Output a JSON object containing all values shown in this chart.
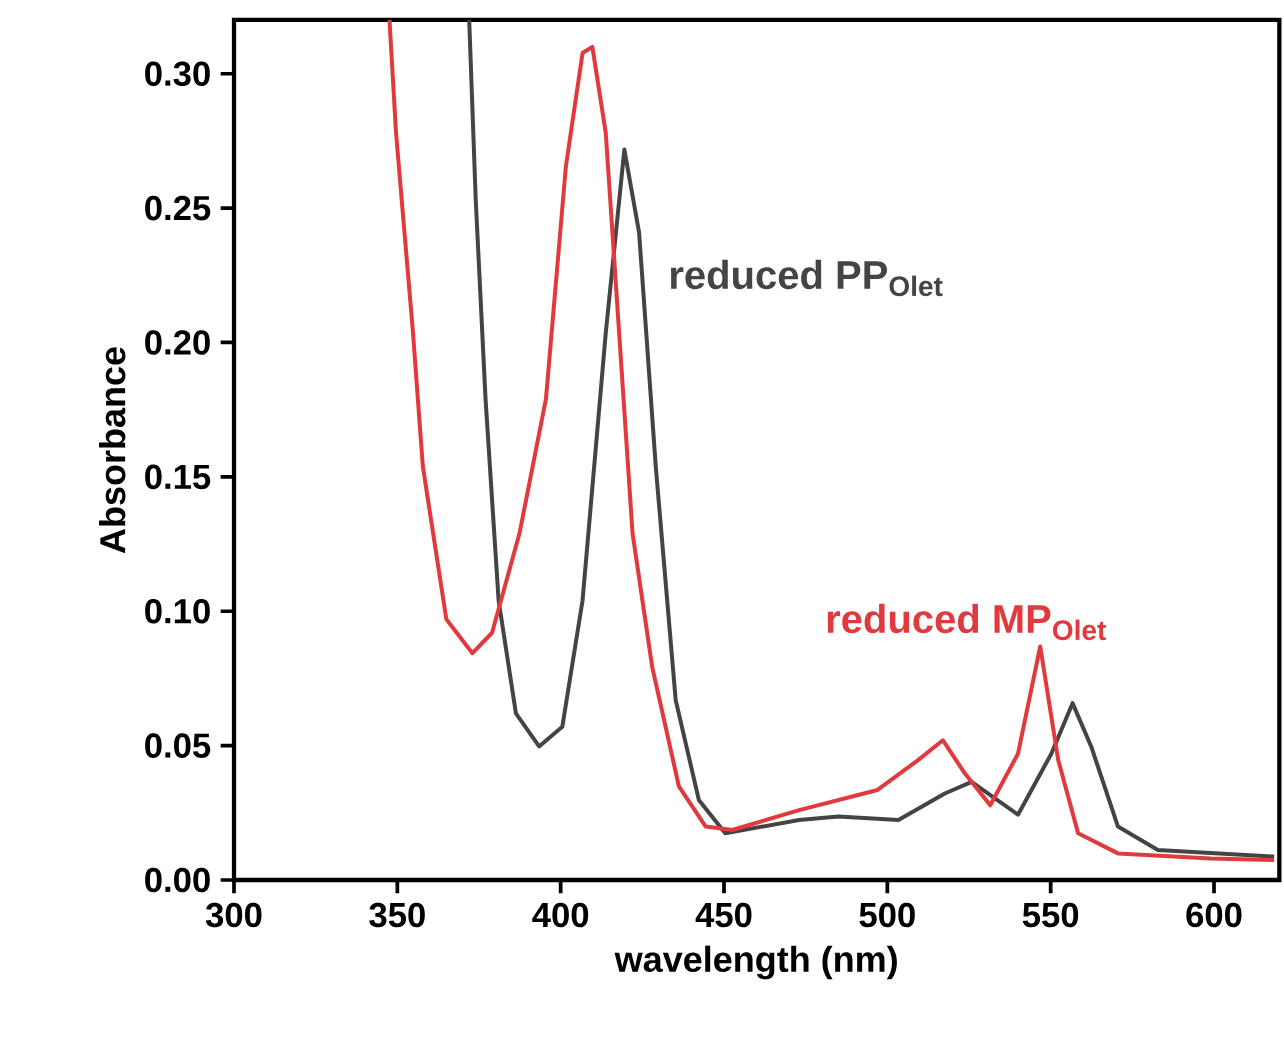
{
  "chart_data": {
    "type": "line",
    "xlabel": "wavelength (nm)",
    "ylabel": "Absorbance",
    "xlim": [
      300,
      620
    ],
    "ylim": [
      0,
      0.32
    ],
    "xticks": [
      300,
      350,
      400,
      450,
      500,
      550,
      600
    ],
    "yticks": [
      {
        "value": 0,
        "label": "0.00"
      },
      {
        "value": 0.05,
        "label": "0.05"
      },
      {
        "value": 0.1,
        "label": "0.10"
      },
      {
        "value": 0.15,
        "label": "0.15"
      },
      {
        "value": 0.2,
        "label": "0.20"
      },
      {
        "value": 0.25,
        "label": "0.25"
      },
      {
        "value": 0.3,
        "label": "0.30"
      }
    ],
    "grid": false,
    "marker": "none",
    "line_style": "solid",
    "series": [
      {
        "name": "reduced PP$_{Olet}$",
        "color": "#444444",
        "x": [
          372,
          374,
          377,
          381,
          386.3,
          393.4,
          400.5,
          406.7,
          413.8,
          419.5,
          424,
          429.1,
          435.2,
          442.3,
          450.4,
          473,
          485,
          503.4,
          517.6,
          525.8,
          540,
          550.2,
          556.7,
          562.4,
          570.6,
          582.8,
          618.4
        ],
        "values": [
          0.32,
          0.253,
          0.179,
          0.104,
          0.062,
          0.0497,
          0.057,
          0.104,
          0.2035,
          0.2718,
          0.241,
          0.154,
          0.067,
          0.0298,
          0.0174,
          0.0223,
          0.0236,
          0.0223,
          0.0322,
          0.0365,
          0.0243,
          0.047,
          0.0658,
          0.0497,
          0.0199,
          0.0112,
          0.0087
        ]
      },
      {
        "name": "reduced MP$_{Olet}$",
        "color": "#e0393e",
        "x": [
          347.6,
          349.6,
          354.8,
          357.8,
          365,
          373,
          379,
          387.4,
          395.5,
          401.6,
          406.7,
          409.7,
          413.8,
          417.9,
          422,
          428,
          436.2,
          444.4,
          452.5,
          473,
          497,
          509.5,
          517,
          523.7,
          531.5,
          540,
          546.8,
          552.3,
          558.4,
          570.6,
          599,
          618.4
        ],
        "values": [
          0.32,
          0.278,
          0.2035,
          0.154,
          0.097,
          0.0844,
          0.092,
          0.129,
          0.179,
          0.2656,
          0.3077,
          0.31,
          0.278,
          0.2035,
          0.129,
          0.0794,
          0.0348,
          0.0199,
          0.0186,
          0.026,
          0.0335,
          0.0447,
          0.052,
          0.0397,
          0.0278,
          0.047,
          0.0869,
          0.0447,
          0.0174,
          0.0099,
          0.008,
          0.0074
        ]
      }
    ]
  }
}
